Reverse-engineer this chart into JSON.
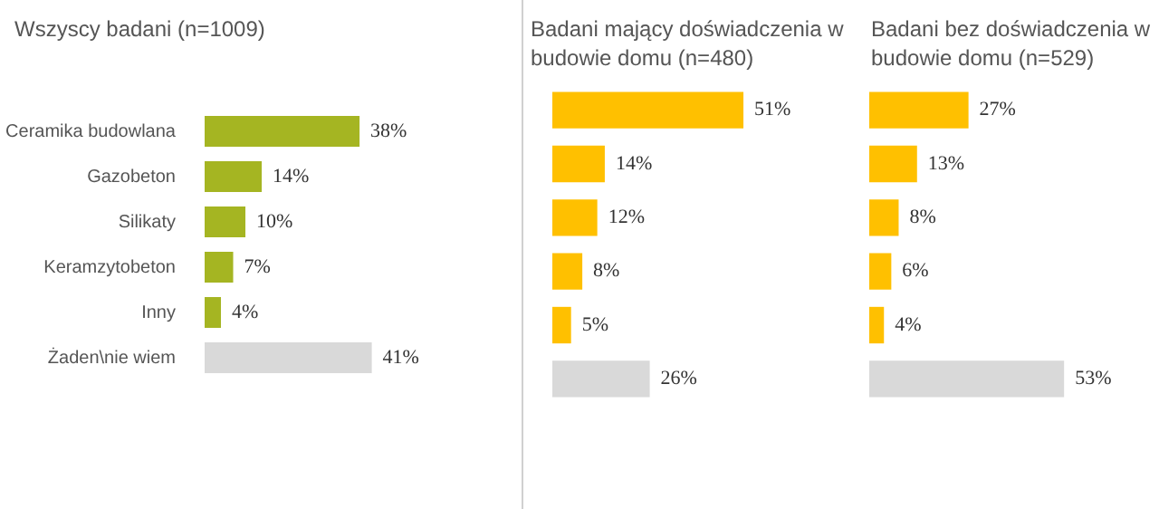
{
  "chart_data": [
    {
      "type": "bar",
      "orientation": "horizontal",
      "title": "Wszyscy badani (n=1009)",
      "categories": [
        "Ceramika budowlana",
        "Gazobeton",
        "Silikaty",
        "Keramzytobeton",
        "Inny",
        "Żaden\\nie wiem"
      ],
      "values": [
        38,
        14,
        10,
        7,
        4,
        41
      ],
      "colors": [
        "#a5b522",
        "#a5b522",
        "#a5b522",
        "#a5b522",
        "#a5b522",
        "#d9d9d9"
      ],
      "value_labels": [
        "38%",
        "14%",
        "10%",
        "7%",
        "4%",
        "41%"
      ]
    },
    {
      "type": "bar",
      "orientation": "horizontal",
      "title": "Badani mający doświadczenia w budowie domu (n=480)",
      "categories": [
        null,
        null,
        null,
        null,
        null,
        null
      ],
      "tick_labels": false,
      "values": [
        51,
        14,
        12,
        8,
        5,
        26
      ],
      "colors": [
        "#ffc000",
        "#ffc000",
        "#ffc000",
        "#ffc000",
        "#ffc000",
        "#d9d9d9"
      ],
      "value_labels": [
        "51%",
        "14%",
        "12%",
        "8%",
        "5%",
        "26%"
      ]
    },
    {
      "type": "bar",
      "orientation": "horizontal",
      "title": "Badani bez doświadczenia w budowie domu (n=529)",
      "categories": [
        null,
        null,
        null,
        null,
        null,
        null
      ],
      "tick_labels": false,
      "values": [
        27,
        13,
        8,
        6,
        4,
        53
      ],
      "colors": [
        "#ffc000",
        "#ffc000",
        "#ffc000",
        "#ffc000",
        "#ffc000",
        "#d9d9d9"
      ],
      "value_labels": [
        "27%",
        "13%",
        "8%",
        "6%",
        "4%",
        "53%"
      ]
    }
  ]
}
